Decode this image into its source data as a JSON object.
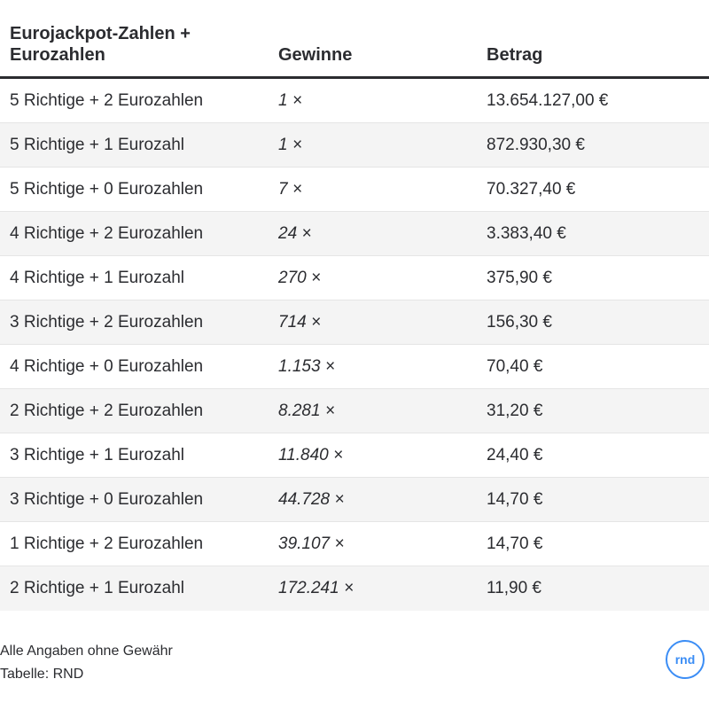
{
  "table": {
    "headers": [
      "Eurojackpot-Zahlen + Eurozahlen",
      "Gewinne",
      "Betrag"
    ],
    "rows": [
      [
        "5 Richtige + 2 Eurozahlen",
        "1 ×",
        "13.654.127,00 €"
      ],
      [
        "5 Richtige + 1 Eurozahl",
        "1 ×",
        "872.930,30 €"
      ],
      [
        "5 Richtige + 0 Eurozahlen",
        "7 ×",
        "70.327,40 €"
      ],
      [
        "4 Richtige + 2 Eurozahlen",
        "24 ×",
        "3.383,40 €"
      ],
      [
        "4 Richtige + 1 Eurozahl",
        "270 ×",
        "375,90 €"
      ],
      [
        "3 Richtige + 2 Eurozahlen",
        "714 ×",
        "156,30 €"
      ],
      [
        "4 Richtige + 0 Eurozahlen",
        "1.153 ×",
        "70,40 €"
      ],
      [
        "2 Richtige + 2 Eurozahlen",
        "8.281 ×",
        "31,20 €"
      ],
      [
        "3 Richtige + 1 Eurozahl",
        "11.840 ×",
        "24,40 €"
      ],
      [
        "3 Richtige + 0 Eurozahlen",
        "44.728 ×",
        "14,70 €"
      ],
      [
        "1 Richtige + 2 Eurozahlen",
        "39.107 ×",
        "14,70 €"
      ],
      [
        "2 Richtige + 1 Eurozahl",
        "172.241 ×",
        "11,90 €"
      ]
    ]
  },
  "footer": {
    "note": "Alle Angaben ohne Gewähr",
    "source": "Tabelle: RND"
  },
  "logo": {
    "text": "rnd",
    "color": "#3b8df5"
  },
  "chart_data": {
    "type": "table",
    "columns": [
      "Eurojackpot-Zahlen + Eurozahlen",
      "Gewinne",
      "Betrag"
    ],
    "rows": [
      [
        "5 Richtige + 2 Eurozahlen",
        "1 ×",
        "13.654.127,00 €"
      ],
      [
        "5 Richtige + 1 Eurozahl",
        "1 ×",
        "872.930,30 €"
      ],
      [
        "5 Richtige + 0 Eurozahlen",
        "7 ×",
        "70.327,40 €"
      ],
      [
        "4 Richtige + 2 Eurozahlen",
        "24 ×",
        "3.383,40 €"
      ],
      [
        "4 Richtige + 1 Eurozahl",
        "270 ×",
        "375,90 €"
      ],
      [
        "3 Richtige + 2 Eurozahlen",
        "714 ×",
        "156,30 €"
      ],
      [
        "4 Richtige + 0 Eurozahlen",
        "1.153 ×",
        "70,40 €"
      ],
      [
        "2 Richtige + 2 Eurozahlen",
        "8.281 ×",
        "31,20 €"
      ],
      [
        "3 Richtige + 1 Eurozahl",
        "11.840 ×",
        "24,40 €"
      ],
      [
        "3 Richtige + 0 Eurozahlen",
        "44.728 ×",
        "14,70 €"
      ],
      [
        "1 Richtige + 2 Eurozahlen",
        "39.107 ×",
        "14,70 €"
      ],
      [
        "2 Richtige + 1 Eurozahl",
        "172.241 ×",
        "11,90 €"
      ]
    ]
  }
}
